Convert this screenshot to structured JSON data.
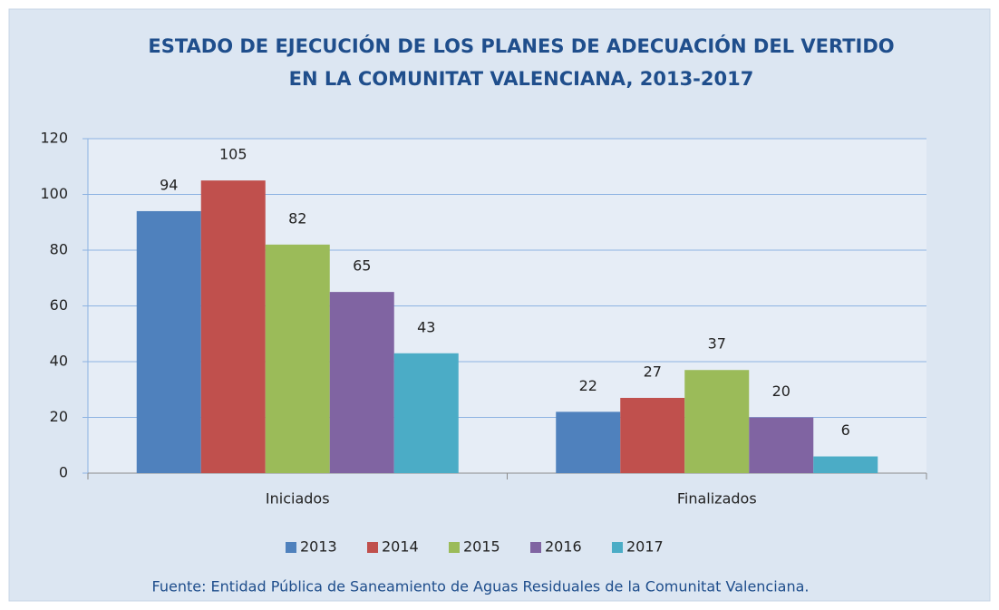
{
  "chart_data": {
    "type": "bar",
    "title": [
      "ESTADO DE EJECUCIÓN DE LOS PLANES DE ADECUACIÓN DEL VERTIDO",
      "EN LA COMUNITAT VALENCIANA, 2013-2017"
    ],
    "categories": [
      "Iniciados",
      "Finalizados"
    ],
    "series": [
      {
        "name": "2013",
        "color": "#4f81bd",
        "values": [
          94,
          22
        ]
      },
      {
        "name": "2014",
        "color": "#c0504d",
        "values": [
          105,
          27
        ]
      },
      {
        "name": "2015",
        "color": "#9bbb59",
        "values": [
          82,
          37
        ]
      },
      {
        "name": "2016",
        "color": "#8064a2",
        "values": [
          65,
          20
        ]
      },
      {
        "name": "2017",
        "color": "#4bacc6",
        "values": [
          43,
          6
        ]
      }
    ],
    "ylim": [
      0,
      120
    ],
    "yticks": [
      0,
      20,
      40,
      60,
      80,
      100,
      120
    ],
    "grid": true,
    "legend": "bottom",
    "source": "Fuente: Entidad Pública de Saneamiento de Aguas Residuales de la Comunitat Valenciana."
  }
}
